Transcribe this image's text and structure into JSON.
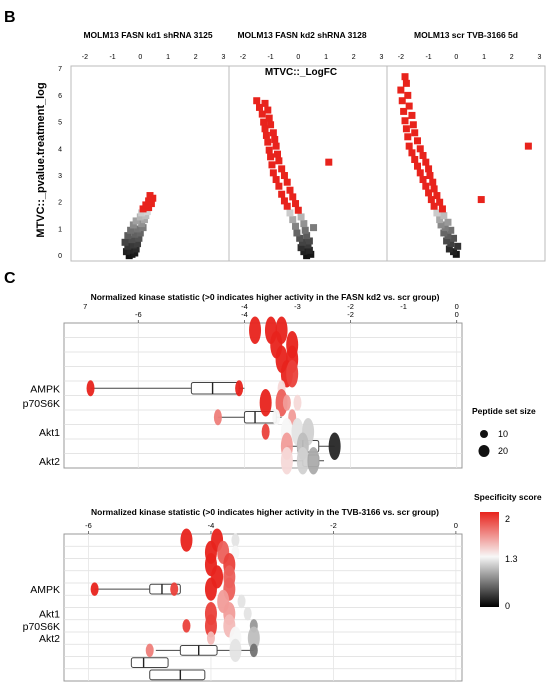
{
  "panels": {
    "b_label": "B",
    "c_label": "C"
  },
  "chart_data": [
    {
      "type": "scatter",
      "panel": "B",
      "ylabel": "MTVC::_pvalue.treatment_log",
      "inner_xlabel": "MTVC::_LogFC",
      "xlim": [
        -2.5,
        3.2
      ],
      "ylim": [
        -0.2,
        7.1
      ],
      "xticks": [
        "-2",
        "-1",
        "0",
        "1",
        "2",
        "3"
      ],
      "yticks": [
        "0",
        "1",
        "2",
        "3",
        "4",
        "5",
        "6",
        "7"
      ],
      "grid": false,
      "colors": {
        "high": "#e8231c",
        "mid": "#d9d9d9",
        "low": "#111111"
      },
      "subplots": [
        {
          "title": "MOLM13 FASN kd1 shRNA 3125",
          "points": [
            [
              -0.4,
              0.0
            ],
            [
              -0.3,
              0.05
            ],
            [
              -0.2,
              0.1
            ],
            [
              -0.5,
              0.15
            ],
            [
              -0.35,
              0.2
            ],
            [
              -0.15,
              0.25
            ],
            [
              -0.45,
              0.35
            ],
            [
              -0.25,
              0.4
            ],
            [
              -0.1,
              0.45
            ],
            [
              -0.55,
              0.5
            ],
            [
              -0.3,
              0.6
            ],
            [
              -0.05,
              0.65
            ],
            [
              -0.45,
              0.75
            ],
            [
              -0.2,
              0.8
            ],
            [
              0.0,
              0.85
            ],
            [
              -0.35,
              0.95
            ],
            [
              -0.1,
              1.0
            ],
            [
              0.1,
              1.05
            ],
            [
              -0.25,
              1.15
            ],
            [
              0.05,
              1.2
            ],
            [
              -0.15,
              1.3
            ],
            [
              0.15,
              1.35
            ],
            [
              0.0,
              1.45
            ],
            [
              0.2,
              1.5
            ],
            [
              0.05,
              1.6
            ],
            [
              0.25,
              1.65
            ],
            [
              0.1,
              1.75
            ],
            [
              0.3,
              1.8
            ],
            [
              0.2,
              1.9
            ],
            [
              0.4,
              1.95
            ],
            [
              0.3,
              2.05
            ],
            [
              0.45,
              2.15
            ],
            [
              0.35,
              2.25
            ]
          ]
        },
        {
          "title": "MOLM13 FASN kd2 shRNA 3128",
          "points": [
            [
              0.3,
              0.0
            ],
            [
              0.45,
              0.05
            ],
            [
              0.2,
              0.15
            ],
            [
              0.4,
              0.2
            ],
            [
              0.1,
              0.3
            ],
            [
              0.35,
              0.4
            ],
            [
              0.15,
              0.5
            ],
            [
              0.4,
              0.55
            ],
            [
              0.05,
              0.65
            ],
            [
              0.3,
              0.75
            ],
            [
              -0.05,
              0.85
            ],
            [
              0.25,
              0.95
            ],
            [
              0.55,
              1.05
            ],
            [
              -0.1,
              1.1
            ],
            [
              0.2,
              1.2
            ],
            [
              -0.2,
              1.35
            ],
            [
              0.1,
              1.45
            ],
            [
              -0.3,
              1.6
            ],
            [
              0.0,
              1.7
            ],
            [
              -0.4,
              1.85
            ],
            [
              -0.1,
              1.95
            ],
            [
              -0.5,
              2.05
            ],
            [
              -0.2,
              2.2
            ],
            [
              -0.6,
              2.3
            ],
            [
              -0.3,
              2.45
            ],
            [
              -0.7,
              2.6
            ],
            [
              -0.4,
              2.75
            ],
            [
              -0.8,
              2.85
            ],
            [
              -0.5,
              3.0
            ],
            [
              -0.9,
              3.1
            ],
            [
              -0.6,
              3.25
            ],
            [
              -0.95,
              3.4
            ],
            [
              -0.7,
              3.55
            ],
            [
              -1.0,
              3.7
            ],
            [
              -0.75,
              3.8
            ],
            [
              -1.05,
              3.95
            ],
            [
              -0.8,
              4.1
            ],
            [
              -1.1,
              4.25
            ],
            [
              -0.85,
              4.35
            ],
            [
              -1.15,
              4.5
            ],
            [
              -0.9,
              4.6
            ],
            [
              -1.2,
              4.75
            ],
            [
              -1.0,
              4.9
            ],
            [
              -1.25,
              5.0
            ],
            [
              -1.05,
              5.15
            ],
            [
              -1.3,
              5.3
            ],
            [
              -1.1,
              5.45
            ],
            [
              -1.4,
              5.55
            ],
            [
              -1.2,
              5.7
            ],
            [
              -1.5,
              5.8
            ],
            [
              1.1,
              3.5
            ]
          ]
        },
        {
          "title": "MOLM13 scr TVB-3166 5d",
          "points": [
            [
              0.0,
              0.05
            ],
            [
              -0.1,
              0.15
            ],
            [
              -0.25,
              0.25
            ],
            [
              0.05,
              0.35
            ],
            [
              -0.2,
              0.45
            ],
            [
              -0.35,
              0.55
            ],
            [
              -0.1,
              0.65
            ],
            [
              -0.3,
              0.75
            ],
            [
              -0.45,
              0.85
            ],
            [
              -0.2,
              0.95
            ],
            [
              -0.4,
              1.05
            ],
            [
              -0.55,
              1.15
            ],
            [
              -0.3,
              1.25
            ],
            [
              -0.6,
              1.35
            ],
            [
              -0.45,
              1.5
            ],
            [
              -0.7,
              1.6
            ],
            [
              -0.5,
              1.75
            ],
            [
              -0.8,
              1.85
            ],
            [
              -0.6,
              2.0
            ],
            [
              -0.9,
              2.1
            ],
            [
              -0.7,
              2.25
            ],
            [
              -1.0,
              2.35
            ],
            [
              -0.8,
              2.5
            ],
            [
              -1.1,
              2.6
            ],
            [
              -0.85,
              2.75
            ],
            [
              -1.2,
              2.85
            ],
            [
              -0.95,
              3.0
            ],
            [
              -1.3,
              3.1
            ],
            [
              -1.0,
              3.25
            ],
            [
              -1.4,
              3.35
            ],
            [
              -1.1,
              3.5
            ],
            [
              -1.5,
              3.6
            ],
            [
              -1.2,
              3.75
            ],
            [
              -1.6,
              3.85
            ],
            [
              -1.3,
              4.0
            ],
            [
              -1.7,
              4.1
            ],
            [
              -1.4,
              4.3
            ],
            [
              -1.75,
              4.45
            ],
            [
              -1.5,
              4.6
            ],
            [
              -1.8,
              4.75
            ],
            [
              -1.55,
              4.9
            ],
            [
              -1.85,
              5.05
            ],
            [
              -1.6,
              5.25
            ],
            [
              -1.9,
              5.4
            ],
            [
              -1.7,
              5.6
            ],
            [
              -1.95,
              5.8
            ],
            [
              -1.75,
              6.0
            ],
            [
              -2.0,
              6.2
            ],
            [
              -1.8,
              6.45
            ],
            [
              -1.85,
              6.7
            ],
            [
              0.9,
              2.1
            ],
            [
              2.6,
              4.1
            ]
          ]
        }
      ]
    },
    {
      "type": "boxplot",
      "panel": "C-top",
      "title": "Normalized kinase statistic (>0 indicates higher activity in the FASN kd2 vs. scr group)",
      "xlim": [
        -7.4,
        0.1
      ],
      "xticks": [
        "-6",
        "-4",
        "-2",
        "0"
      ],
      "major_ticks": [
        "7",
        "-4",
        "-3",
        "-2",
        "-1",
        "0"
      ],
      "y_labels": [
        "AMPK",
        "p70S6K",
        "Akt1",
        "Akt2"
      ],
      "y_label_rows": [
        4,
        5,
        7,
        9
      ],
      "rows": 10,
      "boxes": [
        {
          "row": 4,
          "min": -6.9,
          "q1": -5.0,
          "median": -4.6,
          "q3": -4.1,
          "max": -4.0
        },
        {
          "row": 6,
          "min": -4.5,
          "q1": -4.0,
          "median": -3.8,
          "q3": -3.4,
          "max": -3.3
        },
        {
          "row": 8,
          "min": -3.2,
          "q1": -3.0,
          "median": -2.9,
          "q3": -2.6,
          "max": -2.3
        },
        {
          "row": 9,
          "min": -3.1,
          "q1": -2.9,
          "median": -2.8,
          "q3": -2.6,
          "max": -2.5
        }
      ],
      "dots": [
        {
          "x": -3.8,
          "row": 0,
          "size": 20,
          "score": 2.0
        },
        {
          "x": -3.5,
          "row": 0,
          "size": 20,
          "score": 2.0
        },
        {
          "x": -3.3,
          "row": 0,
          "size": 20,
          "score": 2.0
        },
        {
          "x": -3.4,
          "row": 1,
          "size": 20,
          "score": 2.0
        },
        {
          "x": -3.1,
          "row": 1,
          "size": 20,
          "score": 2.0
        },
        {
          "x": -3.3,
          "row": 2,
          "size": 20,
          "score": 2.0
        },
        {
          "x": -3.1,
          "row": 2,
          "size": 20,
          "score": 2.0
        },
        {
          "x": -3.2,
          "row": 3,
          "size": 20,
          "score": 2.0
        },
        {
          "x": -3.1,
          "row": 3,
          "size": 20,
          "score": 1.9
        },
        {
          "x": -6.9,
          "row": 4,
          "size": 10,
          "score": 2.0
        },
        {
          "x": -4.1,
          "row": 4,
          "size": 10,
          "score": 2.0
        },
        {
          "x": -3.3,
          "row": 4,
          "size": 10,
          "score": 1.4
        },
        {
          "x": -3.6,
          "row": 5,
          "size": 20,
          "score": 2.0
        },
        {
          "x": -3.3,
          "row": 5,
          "size": 20,
          "score": 1.8
        },
        {
          "x": -3.0,
          "row": 5,
          "size": 10,
          "score": 1.4
        },
        {
          "x": -3.2,
          "row": 5,
          "size": 10,
          "score": 1.6
        },
        {
          "x": -3.1,
          "row": 6,
          "size": 10,
          "score": 1.6
        },
        {
          "x": -4.5,
          "row": 6,
          "size": 10,
          "score": 1.7
        },
        {
          "x": -3.4,
          "row": 6,
          "size": 10,
          "score": 1.3
        },
        {
          "x": -3.6,
          "row": 7,
          "size": 10,
          "score": 1.9
        },
        {
          "x": -3.2,
          "row": 7,
          "size": 20,
          "score": 1.3
        },
        {
          "x": -3.0,
          "row": 7,
          "size": 20,
          "score": 1.2
        },
        {
          "x": -2.8,
          "row": 7,
          "size": 20,
          "score": 1.1
        },
        {
          "x": -3.2,
          "row": 8,
          "size": 20,
          "score": 1.6
        },
        {
          "x": -2.9,
          "row": 8,
          "size": 20,
          "score": 1.0
        },
        {
          "x": -2.3,
          "row": 8,
          "size": 20,
          "score": 0.2
        },
        {
          "x": -3.2,
          "row": 9,
          "size": 20,
          "score": 1.4
        },
        {
          "x": -2.9,
          "row": 9,
          "size": 20,
          "score": 1.1
        },
        {
          "x": -2.7,
          "row": 9,
          "size": 20,
          "score": 0.9
        }
      ]
    },
    {
      "type": "boxplot",
      "panel": "C-bottom",
      "title": "Normalized kinase statistic (>0 indicates higher activity in the TVB-3166 vs. scr group)",
      "xlim": [
        -6.4,
        0.1
      ],
      "xticks": [
        "-6",
        "-4",
        "-2",
        "0"
      ],
      "y_labels": [
        "AMPK",
        "Akt1",
        "p70S6K",
        "Akt2"
      ],
      "y_label_rows": [
        4,
        6,
        7,
        8
      ],
      "rows": 12,
      "boxes": [
        {
          "row": 4,
          "min": -5.9,
          "q1": -5.0,
          "median": -4.8,
          "q3": -4.5,
          "max": -4.5
        },
        {
          "row": 9,
          "min": -4.9,
          "q1": -4.5,
          "median": -4.2,
          "q3": -3.9,
          "max": -3.3
        },
        {
          "row": 10,
          "min": -5.3,
          "q1": -5.3,
          "median": -5.1,
          "q3": -4.7,
          "max": -4.7
        },
        {
          "row": 11,
          "min": -5.0,
          "q1": -5.0,
          "median": -4.5,
          "q3": -4.1,
          "max": -4.1
        }
      ],
      "dots": [
        {
          "x": -4.4,
          "row": 0,
          "size": 20,
          "score": 2.0
        },
        {
          "x": -3.9,
          "row": 0,
          "size": 20,
          "score": 2.0
        },
        {
          "x": -3.6,
          "row": 0,
          "size": 10,
          "score": 1.2
        },
        {
          "x": -4.0,
          "row": 1,
          "size": 20,
          "score": 2.0
        },
        {
          "x": -3.8,
          "row": 1,
          "size": 20,
          "score": 1.8
        },
        {
          "x": -3.6,
          "row": 1,
          "size": 10,
          "score": 1.3
        },
        {
          "x": -4.0,
          "row": 2,
          "size": 20,
          "score": 2.0
        },
        {
          "x": -3.7,
          "row": 2,
          "size": 20,
          "score": 1.9
        },
        {
          "x": -3.9,
          "row": 3,
          "size": 20,
          "score": 2.0
        },
        {
          "x": -3.7,
          "row": 3,
          "size": 20,
          "score": 1.8
        },
        {
          "x": -5.9,
          "row": 4,
          "size": 10,
          "score": 2.0
        },
        {
          "x": -4.6,
          "row": 4,
          "size": 10,
          "score": 1.9
        },
        {
          "x": -4.0,
          "row": 4,
          "size": 20,
          "score": 2.0
        },
        {
          "x": -3.7,
          "row": 4,
          "size": 20,
          "score": 1.8
        },
        {
          "x": -3.8,
          "row": 5,
          "size": 20,
          "score": 1.6
        },
        {
          "x": -3.5,
          "row": 5,
          "size": 10,
          "score": 1.2
        },
        {
          "x": -4.0,
          "row": 6,
          "size": 20,
          "score": 1.9
        },
        {
          "x": -3.7,
          "row": 6,
          "size": 20,
          "score": 1.6
        },
        {
          "x": -3.4,
          "row": 6,
          "size": 10,
          "score": 1.2
        },
        {
          "x": -4.4,
          "row": 7,
          "size": 10,
          "score": 1.9
        },
        {
          "x": -4.0,
          "row": 7,
          "size": 20,
          "score": 1.9
        },
        {
          "x": -3.7,
          "row": 7,
          "size": 20,
          "score": 1.5
        },
        {
          "x": -3.3,
          "row": 7,
          "size": 10,
          "score": 0.8
        },
        {
          "x": -4.0,
          "row": 8,
          "size": 10,
          "score": 1.5
        },
        {
          "x": -3.6,
          "row": 8,
          "size": 20,
          "score": 1.3
        },
        {
          "x": -3.3,
          "row": 8,
          "size": 20,
          "score": 1.0
        },
        {
          "x": -5.0,
          "row": 9,
          "size": 10,
          "score": 1.7
        },
        {
          "x": -3.6,
          "row": 9,
          "size": 20,
          "score": 1.2
        },
        {
          "x": -3.3,
          "row": 9,
          "size": 10,
          "score": 0.6
        }
      ]
    },
    {
      "type": "legend",
      "size_title": "Peptide set size",
      "size_labels": [
        "10",
        "20"
      ],
      "score_title": "Specificity score",
      "score_ticks": [
        "2",
        "1.3",
        "0"
      ],
      "colors": [
        "#e8231c",
        "#f7f7f7",
        "#000000"
      ]
    }
  ]
}
